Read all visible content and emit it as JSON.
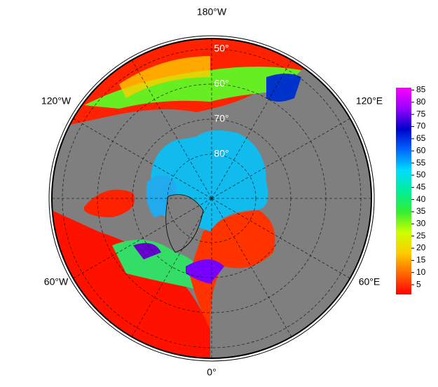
{
  "map": {
    "longitude_labels": [
      "180°W",
      "120°W",
      "120°E",
      "60°W",
      "60°E",
      "0°"
    ],
    "latitude_labels": [
      {
        "value": 50,
        "label": "50°"
      },
      {
        "value": 60,
        "label": "60°"
      },
      {
        "value": 70,
        "label": "70°"
      },
      {
        "value": 80,
        "label": "80°"
      }
    ],
    "colorbar": {
      "lim": [
        1,
        86
      ],
      "ticks": [
        5,
        10,
        15,
        20,
        25,
        30,
        35,
        40,
        45,
        50,
        55,
        60,
        65,
        70,
        75,
        80,
        85
      ],
      "colors": [
        "#ff0000",
        "#ff6600",
        "#ffcc00",
        "#ccff00",
        "#33ee33",
        "#00ee99",
        "#00ddff",
        "#0066ff",
        "#0000cc",
        "#9900ff",
        "#ff00ff"
      ]
    }
  }
}
